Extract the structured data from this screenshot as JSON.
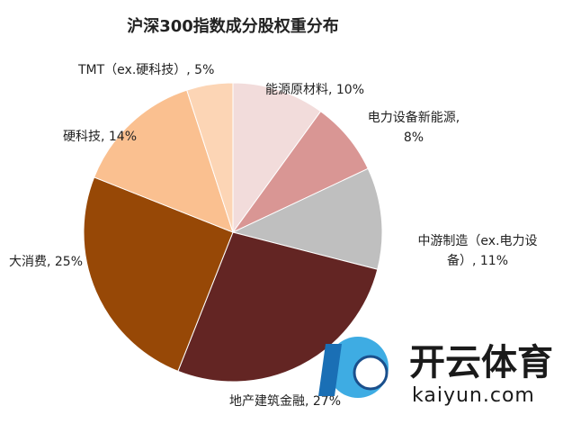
{
  "chart_data": {
    "type": "pie",
    "title": "沪深300指数成分股权重分布",
    "categories": [
      "能源原材料",
      "电力设备新能源",
      "中游制造（ex.电力设备）",
      "地产建筑金融",
      "大消费",
      "硬科技",
      "TMT（ex.硬科技）"
    ],
    "values": [
      10,
      8,
      11,
      27,
      25,
      14,
      5
    ],
    "value_labels": [
      "能源原材料, 10%",
      "电力设备新能源,\n8%",
      "中游制造（ex.电力设\n备）, 11%",
      "地产建筑金融, 27%",
      "大消费, 25%",
      "硬科技, 14%",
      "TMT（ex.硬科技）, 5%"
    ],
    "colors": [
      "#f2dcdb",
      "#d99694",
      "#bfbfbf",
      "#632523",
      "#974806",
      "#fac090",
      "#fcd5b5"
    ]
  },
  "watermark": {
    "brand": "开云体育",
    "site": "kaiyun.com"
  }
}
